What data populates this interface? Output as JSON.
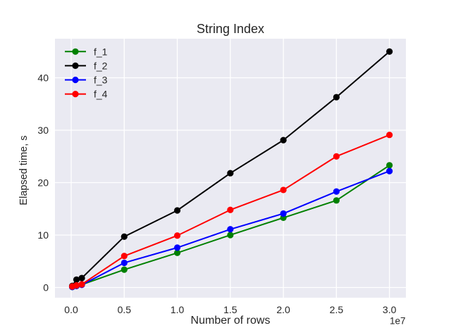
{
  "figure": {
    "title": "String Index",
    "xlabel": "Number of rows",
    "ylabel": "Elapsed time, s",
    "background": "#ffffff",
    "axes_background": "#eaeaf2",
    "grid_color": "#ffffff",
    "text_color": "#262626"
  },
  "chart_data": {
    "type": "line",
    "title": "String Index",
    "xlabel": "Number of rows",
    "ylabel": "Elapsed time, s",
    "x_offset_label": "1e7",
    "x": [
      100000,
      500000,
      1000000,
      5000000,
      10000000,
      15000000,
      20000000,
      25000000,
      30000000
    ],
    "series": [
      {
        "name": "f_1",
        "color": "#008000",
        "values": [
          0.1,
          0.3,
          0.55,
          3.4,
          6.6,
          10.0,
          13.3,
          16.6,
          23.3
        ]
      },
      {
        "name": "f_2",
        "color": "#000000",
        "values": [
          0.3,
          1.5,
          1.8,
          9.7,
          14.7,
          21.8,
          28.1,
          36.3,
          45.0
        ]
      },
      {
        "name": "f_3",
        "color": "#0000ff",
        "values": [
          0.1,
          0.3,
          0.5,
          4.7,
          7.6,
          11.1,
          14.1,
          18.3,
          22.2
        ]
      },
      {
        "name": "f_4",
        "color": "#ff0000",
        "values": [
          0.2,
          0.4,
          0.6,
          6.0,
          9.9,
          14.8,
          18.6,
          25.0,
          29.1
        ]
      }
    ],
    "xticks": {
      "values": [
        0,
        5000000,
        10000000,
        15000000,
        20000000,
        25000000,
        30000000
      ],
      "labels": [
        "0.0",
        "0.5",
        "1.0",
        "1.5",
        "2.0",
        "2.5",
        "3.0"
      ]
    },
    "yticks": {
      "values": [
        0,
        10,
        20,
        30,
        40
      ],
      "labels": [
        "0",
        "10",
        "20",
        "30",
        "40"
      ]
    },
    "xlim": [
      -1530000,
      31550000
    ],
    "ylim": [
      -1.95,
      47.45
    ],
    "grid": true,
    "marker": "o",
    "legend": {
      "position": "upper left",
      "entries": [
        "f_1",
        "f_2",
        "f_3",
        "f_4"
      ]
    }
  }
}
